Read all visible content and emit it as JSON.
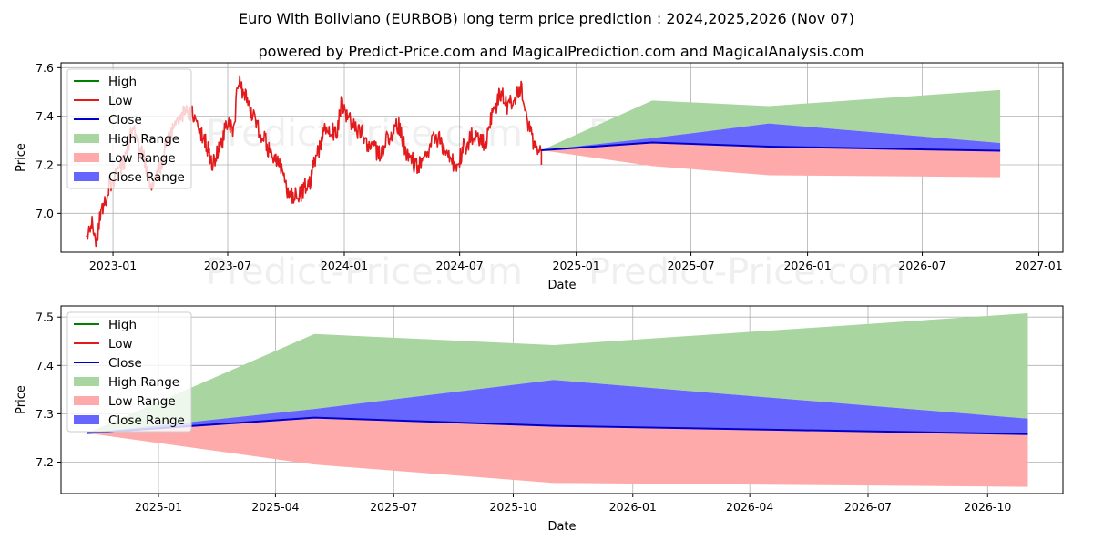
{
  "title_line1": "Euro With Boliviano (EURBOB) long term price prediction : 2024,2025,2026 (Nov 07)",
  "title_line2": "powered by Predict-Price.com and MagicalPrediction.com and MagicalAnalysis.com",
  "watermark": "Predict-Price.com",
  "colors": {
    "high": "#008000",
    "low": "#e31a1c",
    "close": "#0000cc",
    "high_range": "#a8d5a0",
    "low_range": "#ffaaaa",
    "close_range": "#6666ff",
    "grid": "#b0b0b0"
  },
  "chart_data": [
    {
      "type": "line",
      "id": "top",
      "xlabel": "Date",
      "ylabel": "Price",
      "xlim": [
        "2022-10-11",
        "2027-02-08"
      ],
      "ylim": [
        6.84,
        7.62
      ],
      "xticks": [
        {
          "date": "2023-01-01",
          "label": "2023-01"
        },
        {
          "date": "2023-07-01",
          "label": "2023-07"
        },
        {
          "date": "2024-01-01",
          "label": "2024-01"
        },
        {
          "date": "2024-07-01",
          "label": "2024-07"
        },
        {
          "date": "2025-01-01",
          "label": "2025-01"
        },
        {
          "date": "2025-07-01",
          "label": "2025-07"
        },
        {
          "date": "2026-01-01",
          "label": "2026-01"
        },
        {
          "date": "2026-07-01",
          "label": "2026-07"
        },
        {
          "date": "2027-01-01",
          "label": "2027-01"
        }
      ],
      "yticks": [
        {
          "value": 7.0,
          "label": "7.0"
        },
        {
          "value": 7.2,
          "label": "7.2"
        },
        {
          "value": 7.4,
          "label": "7.4"
        },
        {
          "value": 7.6,
          "label": "7.6"
        }
      ],
      "legend": {
        "placement": "top-left",
        "entries": [
          {
            "label": "High",
            "kind": "line",
            "color_key": "high"
          },
          {
            "label": "Low",
            "kind": "line",
            "color_key": "low"
          },
          {
            "label": "Close",
            "kind": "line",
            "color_key": "close"
          },
          {
            "label": "High Range",
            "kind": "patch",
            "color_key": "high_range"
          },
          {
            "label": "Low Range",
            "kind": "patch",
            "color_key": "low_range"
          },
          {
            "label": "Close Range",
            "kind": "patch",
            "color_key": "close_range"
          }
        ]
      },
      "history_anchors": [
        [
          "2022-11-20",
          6.91
        ],
        [
          "2022-11-28",
          6.96
        ],
        [
          "2022-12-05",
          6.88
        ],
        [
          "2022-12-15",
          7.02
        ],
        [
          "2022-12-28",
          7.12
        ],
        [
          "2023-01-08",
          7.16
        ],
        [
          "2023-01-20",
          7.22
        ],
        [
          "2023-02-01",
          7.34
        ],
        [
          "2023-02-15",
          7.25
        ],
        [
          "2023-03-01",
          7.12
        ],
        [
          "2023-03-15",
          7.18
        ],
        [
          "2023-03-28",
          7.3
        ],
        [
          "2023-04-10",
          7.38
        ],
        [
          "2023-04-25",
          7.42
        ],
        [
          "2023-05-10",
          7.41
        ],
        [
          "2023-05-25",
          7.3
        ],
        [
          "2023-06-08",
          7.21
        ],
        [
          "2023-06-20",
          7.28
        ],
        [
          "2023-06-30",
          7.38
        ],
        [
          "2023-07-10",
          7.33
        ],
        [
          "2023-07-18",
          7.55
        ],
        [
          "2023-07-28",
          7.48
        ],
        [
          "2023-08-10",
          7.39
        ],
        [
          "2023-08-25",
          7.31
        ],
        [
          "2023-09-08",
          7.25
        ],
        [
          "2023-09-22",
          7.19
        ],
        [
          "2023-10-05",
          7.08
        ],
        [
          "2023-10-20",
          7.07
        ],
        [
          "2023-11-05",
          7.12
        ],
        [
          "2023-11-20",
          7.25
        ],
        [
          "2023-12-05",
          7.36
        ],
        [
          "2023-12-20",
          7.33
        ],
        [
          "2023-12-28",
          7.45
        ],
        [
          "2024-01-08",
          7.38
        ],
        [
          "2024-01-25",
          7.34
        ],
        [
          "2024-02-10",
          7.28
        ],
        [
          "2024-02-25",
          7.25
        ],
        [
          "2024-03-10",
          7.31
        ],
        [
          "2024-03-25",
          7.36
        ],
        [
          "2024-04-10",
          7.25
        ],
        [
          "2024-04-25",
          7.19
        ],
        [
          "2024-05-10",
          7.25
        ],
        [
          "2024-05-25",
          7.31
        ],
        [
          "2024-06-10",
          7.27
        ],
        [
          "2024-06-25",
          7.19
        ],
        [
          "2024-07-10",
          7.28
        ],
        [
          "2024-07-25",
          7.33
        ],
        [
          "2024-08-10",
          7.29
        ],
        [
          "2024-08-25",
          7.43
        ],
        [
          "2024-09-05",
          7.5
        ],
        [
          "2024-09-15",
          7.44
        ],
        [
          "2024-09-25",
          7.47
        ],
        [
          "2024-10-05",
          7.52
        ],
        [
          "2024-10-15",
          7.38
        ],
        [
          "2024-10-25",
          7.3
        ],
        [
          "2024-11-01",
          7.28
        ],
        [
          "2024-11-07",
          7.26
        ]
      ],
      "prediction_dates": [
        "2024-11-07",
        "2025-05-01",
        "2025-11-01",
        "2026-11-01"
      ],
      "close": [
        7.26,
        7.292,
        7.275,
        7.258
      ],
      "high_range": {
        "lower": [
          7.26,
          7.31,
          7.37,
          7.29
        ],
        "upper": [
          7.26,
          7.465,
          7.442,
          7.508
        ]
      },
      "low_range": {
        "lower": [
          7.26,
          7.195,
          7.157,
          7.149
        ],
        "upper": [
          7.26,
          7.292,
          7.275,
          7.258
        ]
      },
      "close_range": {
        "lower": [
          7.26,
          7.292,
          7.275,
          7.258
        ],
        "upper": [
          7.26,
          7.31,
          7.37,
          7.29
        ]
      }
    },
    {
      "type": "line",
      "id": "bottom",
      "xlabel": "Date",
      "ylabel": "Price",
      "xlim": [
        "2024-10-18",
        "2026-11-28"
      ],
      "ylim": [
        7.135,
        7.523
      ],
      "xticks": [
        {
          "date": "2025-01-01",
          "label": "2025-01"
        },
        {
          "date": "2025-04-01",
          "label": "2025-04"
        },
        {
          "date": "2025-07-01",
          "label": "2025-07"
        },
        {
          "date": "2025-10-01",
          "label": "2025-10"
        },
        {
          "date": "2026-01-01",
          "label": "2026-01"
        },
        {
          "date": "2026-04-01",
          "label": "2026-04"
        },
        {
          "date": "2026-07-01",
          "label": "2026-07"
        },
        {
          "date": "2026-10-01",
          "label": "2026-10"
        }
      ],
      "yticks": [
        {
          "value": 7.2,
          "label": "7.2"
        },
        {
          "value": 7.3,
          "label": "7.3"
        },
        {
          "value": 7.4,
          "label": "7.4"
        },
        {
          "value": 7.5,
          "label": "7.5"
        }
      ],
      "legend": {
        "placement": "top-left",
        "entries": [
          {
            "label": "High",
            "kind": "line",
            "color_key": "high"
          },
          {
            "label": "Low",
            "kind": "line",
            "color_key": "low"
          },
          {
            "label": "Close",
            "kind": "line",
            "color_key": "close"
          },
          {
            "label": "High Range",
            "kind": "patch",
            "color_key": "high_range"
          },
          {
            "label": "Low Range",
            "kind": "patch",
            "color_key": "low_range"
          },
          {
            "label": "Close Range",
            "kind": "patch",
            "color_key": "close_range"
          }
        ]
      },
      "prediction_dates": [
        "2024-11-07",
        "2025-05-01",
        "2025-11-01",
        "2026-11-01"
      ],
      "close": [
        7.26,
        7.292,
        7.275,
        7.258
      ],
      "high_range": {
        "lower": [
          7.26,
          7.31,
          7.37,
          7.29
        ],
        "upper": [
          7.26,
          7.465,
          7.442,
          7.508
        ]
      },
      "low_range": {
        "lower": [
          7.26,
          7.195,
          7.157,
          7.149
        ],
        "upper": [
          7.26,
          7.292,
          7.275,
          7.258
        ]
      },
      "close_range": {
        "lower": [
          7.26,
          7.292,
          7.275,
          7.258
        ],
        "upper": [
          7.26,
          7.31,
          7.37,
          7.29
        ]
      }
    }
  ]
}
